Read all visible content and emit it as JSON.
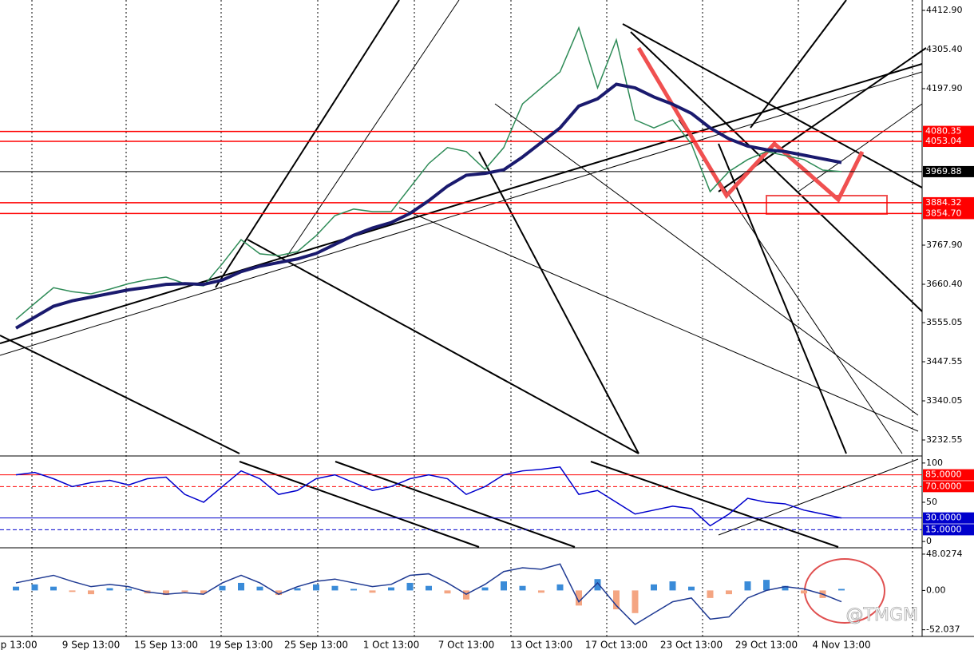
{
  "chart_data": [
    {
      "type": "line",
      "categories": [
        "ep 13:00",
        null,
        null,
        null,
        "9 Sep 13:00",
        null,
        null,
        null,
        "15 Sep 13:00",
        null,
        null,
        null,
        "19 Sep 13:00",
        null,
        null,
        null,
        "25 Sep 13:00",
        null,
        null,
        null,
        "1 Oct 13:00",
        null,
        null,
        null,
        "7 Oct 13:00",
        null,
        null,
        null,
        "13 Oct 13:00",
        null,
        null,
        null,
        "17 Oct 13:00",
        null,
        null,
        null,
        "23 Oct 13:00",
        null,
        null,
        null,
        "29 Oct 13:00",
        null,
        null,
        null,
        "4 Nov 13:00"
      ],
      "series": [
        {
          "color": "#2e8b57",
          "values": [
            3564,
            3608,
            3651,
            3640,
            3634,
            3647,
            3662,
            3673,
            3680,
            3662,
            3656,
            3717,
            3783,
            3744,
            3739,
            3750,
            3794,
            3849,
            3867,
            3860,
            3860,
            3926,
            3992,
            4036,
            4025,
            3976,
            4036,
            4156,
            4200,
            4244,
            4365,
            4200,
            4332,
            4112,
            4090,
            4112,
            4046,
            3915,
            3970,
            4003,
            4025,
            4014,
            4003,
            3974,
            3969.88
          ]
        },
        {
          "color": "#1a1a6e",
          "values": [
            3540,
            3570,
            3600,
            3615,
            3625,
            3635,
            3645,
            3652,
            3660,
            3662,
            3660,
            3672,
            3695,
            3710,
            3720,
            3730,
            3745,
            3770,
            3795,
            3815,
            3830,
            3855,
            3890,
            3930,
            3960,
            3965,
            3975,
            4010,
            4050,
            4090,
            4150,
            4170,
            4210,
            4200,
            4175,
            4155,
            4130,
            4090,
            4060,
            4040,
            4030,
            4025,
            4015,
            4005,
            3995
          ]
        }
      ],
      "ylim": [
        3190.9,
        4441.4
      ],
      "yticks": [
        {
          "value": 4412.9,
          "label": "4412.90"
        },
        {
          "value": 4305.4,
          "label": "4305.40"
        },
        {
          "value": 4197.9,
          "label": "4197.90"
        },
        {
          "value": 3767.9,
          "label": "3767.90"
        },
        {
          "value": 3660.4,
          "label": "3660.40"
        },
        {
          "value": 3555.05,
          "label": "3555.05"
        },
        {
          "value": 3447.55,
          "label": "3447.55"
        },
        {
          "value": 3340.05,
          "label": "3340.05"
        },
        {
          "value": 3232.55,
          "label": "3232.55"
        }
      ],
      "levels": [
        {
          "value": 4080.35,
          "label": "4080.35",
          "color": "#ff0000"
        },
        {
          "value": 4053.04,
          "label": "4053.04",
          "color": "#ff0000"
        },
        {
          "value": 3969.88,
          "label": "3969.88",
          "color": "#000000"
        },
        {
          "value": 3884.32,
          "label": "3884.32",
          "color": "#ff0000"
        },
        {
          "value": 3854.7,
          "label": "3854.70",
          "color": "#ff0000"
        }
      ]
    },
    {
      "type": "line",
      "series": [
        {
          "color": "#0000cc",
          "values": [
            85,
            88,
            80,
            70,
            75,
            78,
            72,
            80,
            82,
            60,
            50,
            70,
            90,
            80,
            60,
            65,
            80,
            85,
            75,
            65,
            70,
            80,
            85,
            80,
            60,
            70,
            85,
            90,
            92,
            95,
            60,
            65,
            50,
            35,
            40,
            45,
            42,
            20,
            35,
            55,
            50,
            48,
            40,
            35,
            30
          ]
        }
      ],
      "ylim": [
        -7,
        108
      ],
      "yticks": [
        100,
        50,
        0
      ],
      "levels": [
        {
          "value": 85,
          "label": "85.0000",
          "color": "#ff0000"
        },
        {
          "value": 70,
          "label": "70.0000",
          "color": "#ff0000"
        },
        {
          "value": 30,
          "label": "30.0000",
          "color": "#0000cc"
        },
        {
          "value": 15,
          "label": "15.0000",
          "color": "#0000cc"
        }
      ]
    },
    {
      "type": "macd",
      "series": [
        {
          "color": "#3a8bd8",
          "negative_color": "#f4a582",
          "values": [
            5,
            8,
            5,
            -2,
            -5,
            3,
            2,
            -4,
            -6,
            -2,
            -4,
            6,
            10,
            5,
            -6,
            3,
            8,
            6,
            2,
            -3,
            4,
            10,
            6,
            -4,
            -12,
            4,
            12,
            6,
            -3,
            8,
            -20,
            15,
            -25,
            -30,
            8,
            12,
            5,
            -10,
            -5,
            12,
            14,
            6,
            -4,
            -10,
            2
          ]
        },
        {
          "color": "#1f3a93",
          "values": [
            10,
            15,
            20,
            12,
            5,
            8,
            5,
            -2,
            -5,
            -3,
            -5,
            10,
            20,
            10,
            -5,
            5,
            12,
            15,
            10,
            5,
            8,
            20,
            22,
            10,
            -5,
            8,
            25,
            30,
            28,
            35,
            -15,
            10,
            -20,
            -45,
            -30,
            -15,
            -10,
            -38,
            -35,
            -10,
            0,
            5,
            2,
            -5,
            -15
          ]
        }
      ],
      "ylim": [
        -59.8,
        54.3
      ],
      "yticks": [
        {
          "value": 48.0274,
          "label": "48.0274"
        },
        {
          "value": 0,
          "label": "0.00"
        },
        {
          "value": -52.037,
          "label": "-52.037"
        }
      ]
    }
  ],
  "watermark": "@TMGM"
}
